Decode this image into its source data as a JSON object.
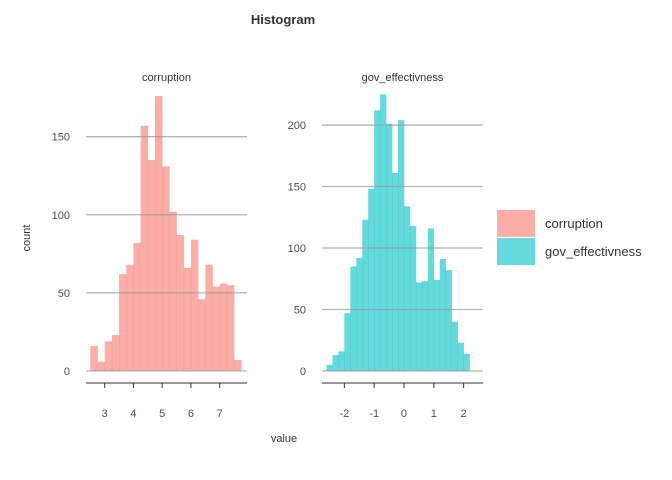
{
  "chart_data": {
    "type": "bar",
    "title": "Histogram",
    "xlabel": "value",
    "ylabel": "count",
    "grid": true,
    "legend_position": "right",
    "legend": [
      {
        "label": "corruption",
        "color": "#F8766D"
      },
      {
        "label": "gov_effectivness",
        "color": "#00BFC4"
      }
    ],
    "panels": [
      {
        "strip": "corruption",
        "series_color": "#F8766D",
        "xlim": [
          2.35,
          7.95
        ],
        "ylim": [
          0,
          185
        ],
        "xticks": [
          3,
          4,
          5,
          6,
          7
        ],
        "yticks": [
          0,
          50,
          100,
          150
        ],
        "bins": [
          {
            "x0": 2.5,
            "x1": 2.75,
            "count": 16
          },
          {
            "x0": 2.75,
            "x1": 3.0,
            "count": 6
          },
          {
            "x0": 3.0,
            "x1": 3.25,
            "count": 19
          },
          {
            "x0": 3.25,
            "x1": 3.5,
            "count": 23
          },
          {
            "x0": 3.5,
            "x1": 3.75,
            "count": 62
          },
          {
            "x0": 3.75,
            "x1": 4.0,
            "count": 68
          },
          {
            "x0": 4.0,
            "x1": 4.25,
            "count": 82
          },
          {
            "x0": 4.25,
            "x1": 4.5,
            "count": 157
          },
          {
            "x0": 4.5,
            "x1": 4.75,
            "count": 135
          },
          {
            "x0": 4.75,
            "x1": 5.0,
            "count": 176
          },
          {
            "x0": 5.0,
            "x1": 5.25,
            "count": 131
          },
          {
            "x0": 5.25,
            "x1": 5.5,
            "count": 102
          },
          {
            "x0": 5.5,
            "x1": 5.75,
            "count": 87
          },
          {
            "x0": 5.75,
            "x1": 6.0,
            "count": 66
          },
          {
            "x0": 6.0,
            "x1": 6.25,
            "count": 84
          },
          {
            "x0": 6.25,
            "x1": 6.5,
            "count": 46
          },
          {
            "x0": 6.5,
            "x1": 6.75,
            "count": 68
          },
          {
            "x0": 6.75,
            "x1": 7.0,
            "count": 54
          },
          {
            "x0": 7.0,
            "x1": 7.25,
            "count": 56
          },
          {
            "x0": 7.25,
            "x1": 7.5,
            "count": 55
          },
          {
            "x0": 7.5,
            "x1": 7.75,
            "count": 7
          }
        ]
      },
      {
        "strip": "gov_effectivness",
        "series_color": "#00BFC4",
        "xlim": [
          -2.75,
          2.65
        ],
        "ylim": [
          0,
          235
        ],
        "xticks": [
          -2,
          -1,
          0,
          1,
          2
        ],
        "yticks": [
          0,
          50,
          100,
          150,
          200
        ],
        "bins": [
          {
            "x0": -2.6,
            "x1": -2.4,
            "count": 5
          },
          {
            "x0": -2.4,
            "x1": -2.2,
            "count": 13
          },
          {
            "x0": -2.2,
            "x1": -2.0,
            "count": 16
          },
          {
            "x0": -2.0,
            "x1": -1.8,
            "count": 47
          },
          {
            "x0": -1.8,
            "x1": -1.6,
            "count": 85
          },
          {
            "x0": -1.6,
            "x1": -1.4,
            "count": 92
          },
          {
            "x0": -1.4,
            "x1": -1.2,
            "count": 123
          },
          {
            "x0": -1.2,
            "x1": -1.0,
            "count": 148
          },
          {
            "x0": -1.0,
            "x1": -0.8,
            "count": 212
          },
          {
            "x0": -0.8,
            "x1": -0.6,
            "count": 225
          },
          {
            "x0": -0.6,
            "x1": -0.4,
            "count": 201
          },
          {
            "x0": -0.4,
            "x1": -0.2,
            "count": 161
          },
          {
            "x0": -0.2,
            "x1": 0.0,
            "count": 204
          },
          {
            "x0": 0.0,
            "x1": 0.2,
            "count": 134
          },
          {
            "x0": 0.2,
            "x1": 0.4,
            "count": 118
          },
          {
            "x0": 0.4,
            "x1": 0.6,
            "count": 72
          },
          {
            "x0": 0.6,
            "x1": 0.8,
            "count": 73
          },
          {
            "x0": 0.8,
            "x1": 1.0,
            "count": 116
          },
          {
            "x0": 1.0,
            "x1": 1.2,
            "count": 74
          },
          {
            "x0": 1.2,
            "x1": 1.4,
            "count": 91
          },
          {
            "x0": 1.4,
            "x1": 1.6,
            "count": 82
          },
          {
            "x0": 1.6,
            "x1": 1.8,
            "count": 40
          },
          {
            "x0": 1.8,
            "x1": 2.0,
            "count": 23
          },
          {
            "x0": 2.0,
            "x1": 2.2,
            "count": 14
          }
        ]
      }
    ]
  }
}
